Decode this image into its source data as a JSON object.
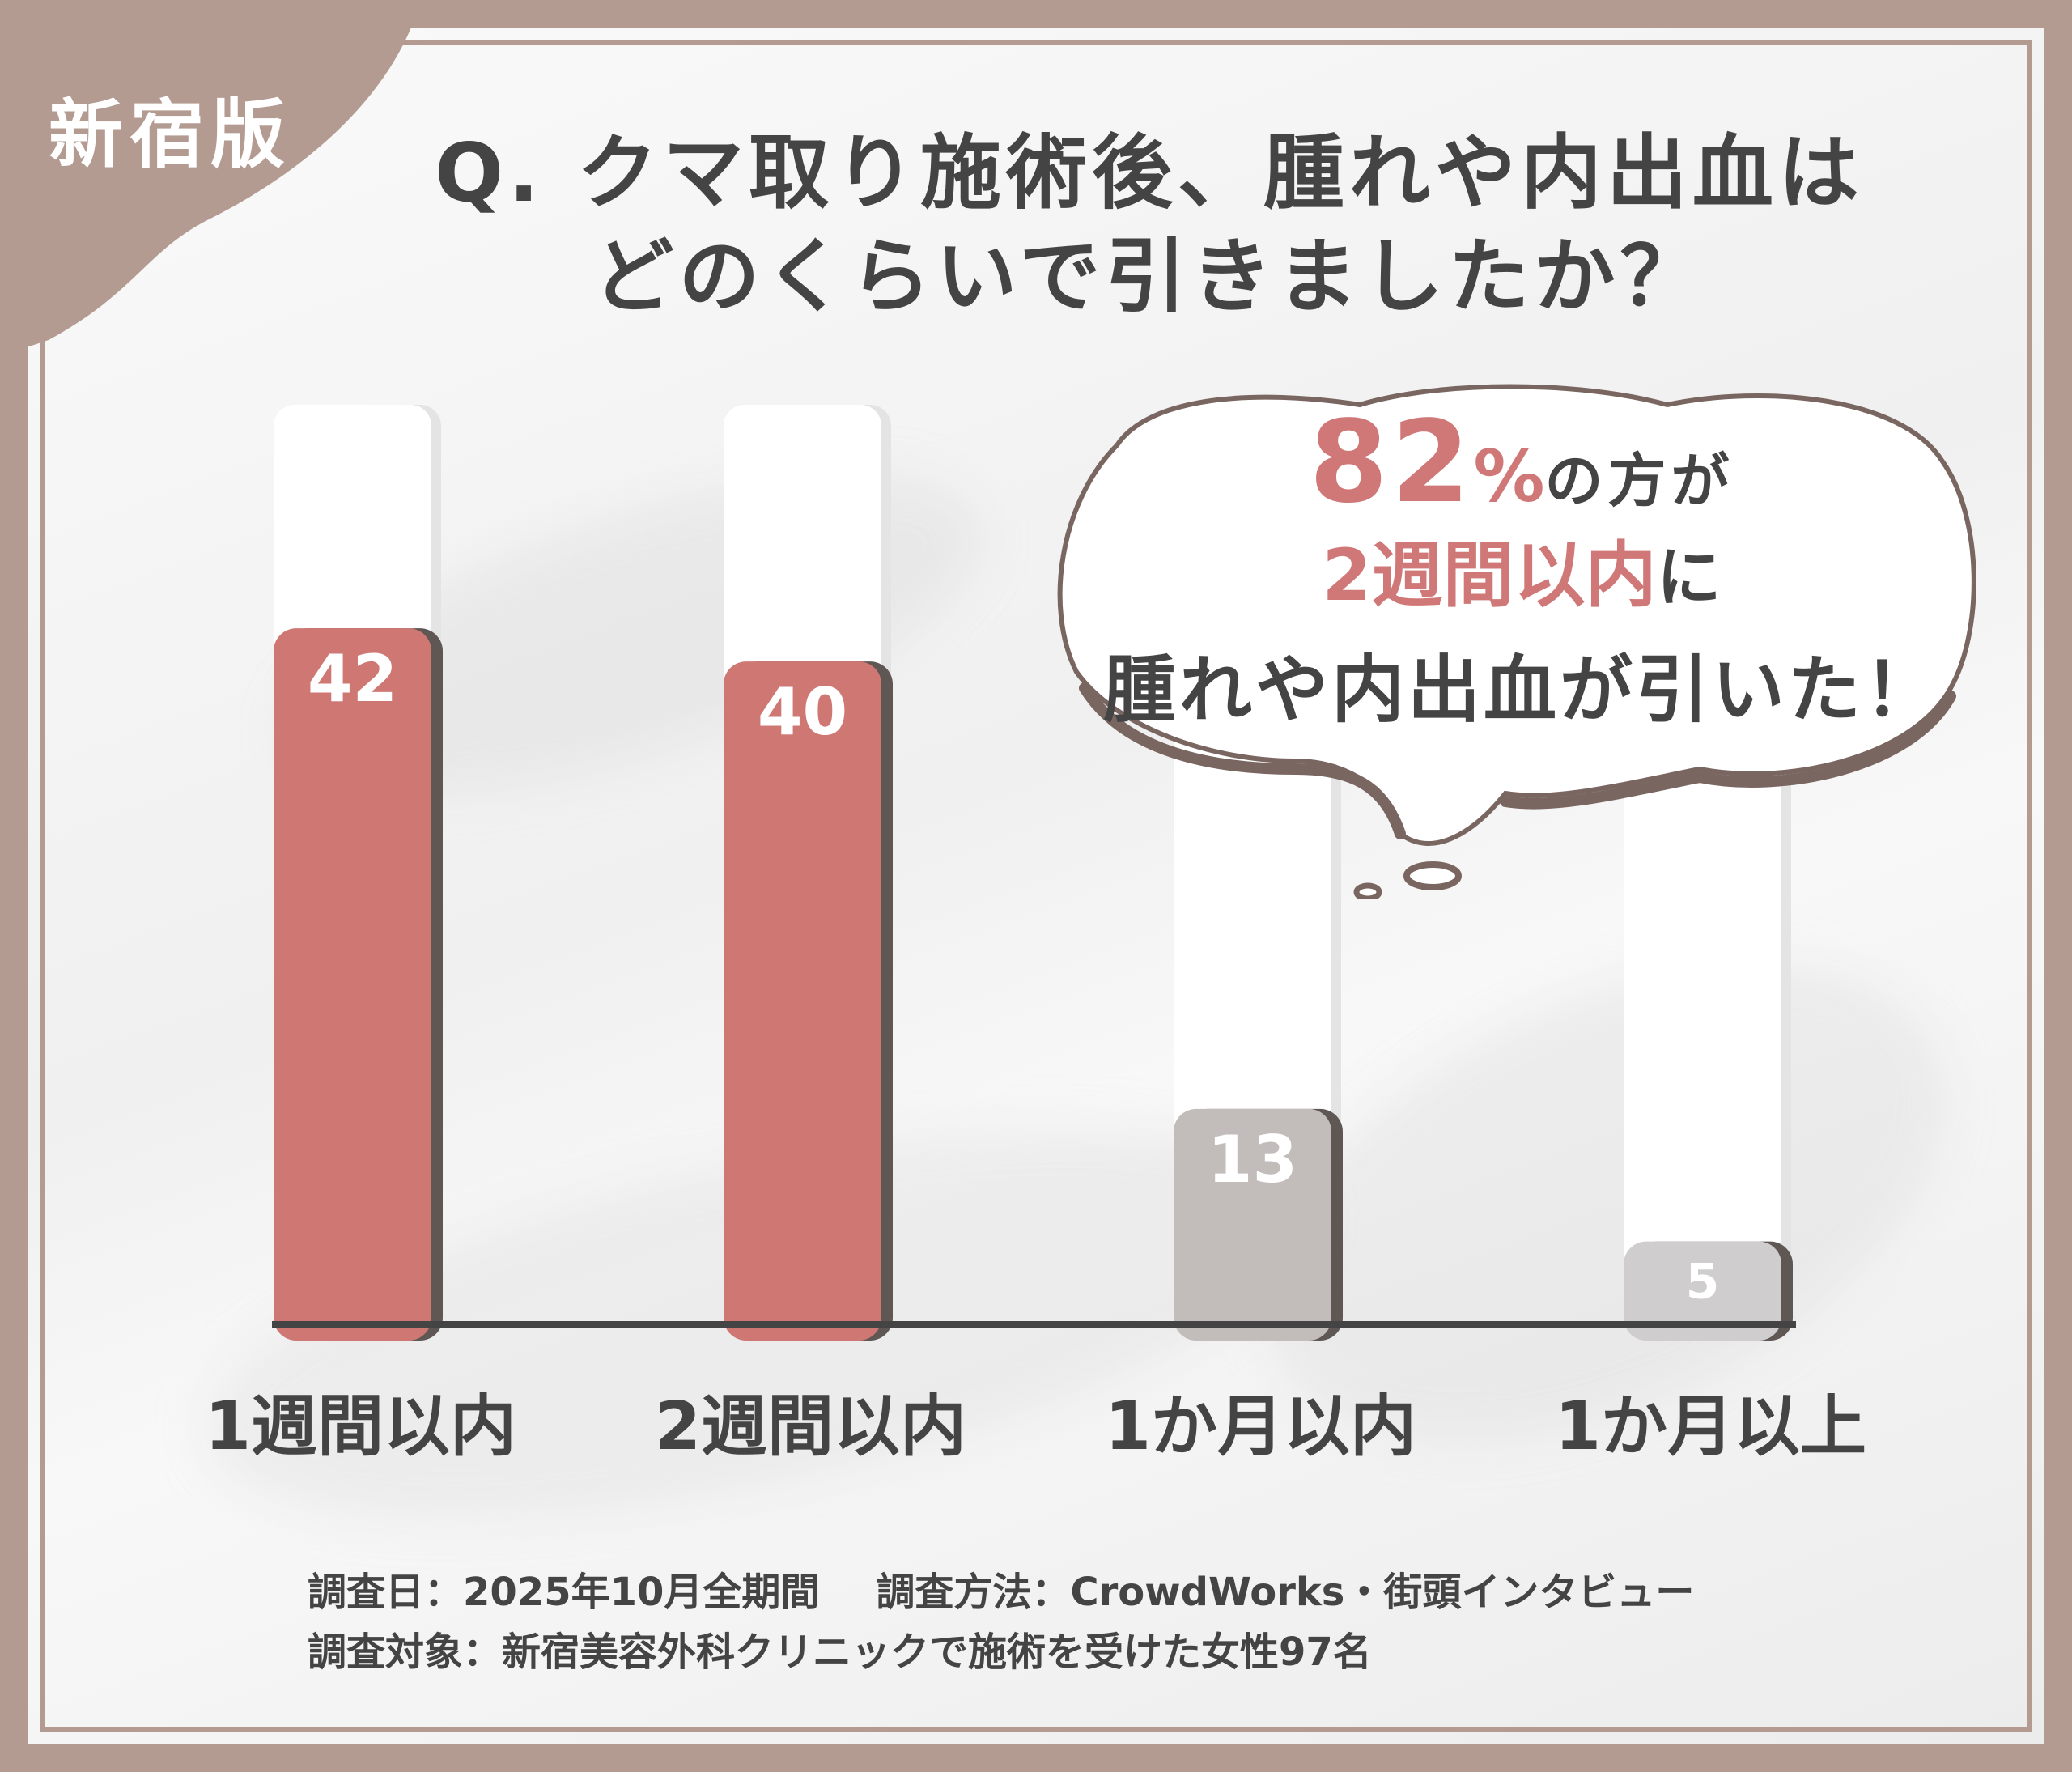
{
  "badge": {
    "label": "新宿版"
  },
  "title": {
    "line1": "Q. クマ取り施術後、腫れや内出血は",
    "line2": "どのくらいで引きましたか？"
  },
  "callout": {
    "percent_value": "82",
    "percent_sign": "%",
    "line1_rest": "の方が",
    "highlight": "2週間以内",
    "line2_rest": "に",
    "line3": "腫れや内出血が引いた！"
  },
  "chart_data": {
    "type": "bar",
    "categories": [
      "1週間以内",
      "2週間以内",
      "1か月以内",
      "1か月以上"
    ],
    "values": [
      42,
      40,
      13,
      5
    ],
    "colors": [
      "#cf7773",
      "#cf7773",
      "#c2bcba",
      "#cfcdcd"
    ],
    "ylim": [
      0,
      55
    ],
    "grid": false
  },
  "footer": {
    "date_label": "調査日：2025年10月全期間",
    "method_label": "調査方法：CrowdWorks・街頭インタビュー",
    "target_label": "調査対象：新宿美容外科クリニックで施術を受けた女性97名"
  },
  "colors": {
    "frame": "#b39b91",
    "accent": "#d07877",
    "text": "#444444"
  }
}
